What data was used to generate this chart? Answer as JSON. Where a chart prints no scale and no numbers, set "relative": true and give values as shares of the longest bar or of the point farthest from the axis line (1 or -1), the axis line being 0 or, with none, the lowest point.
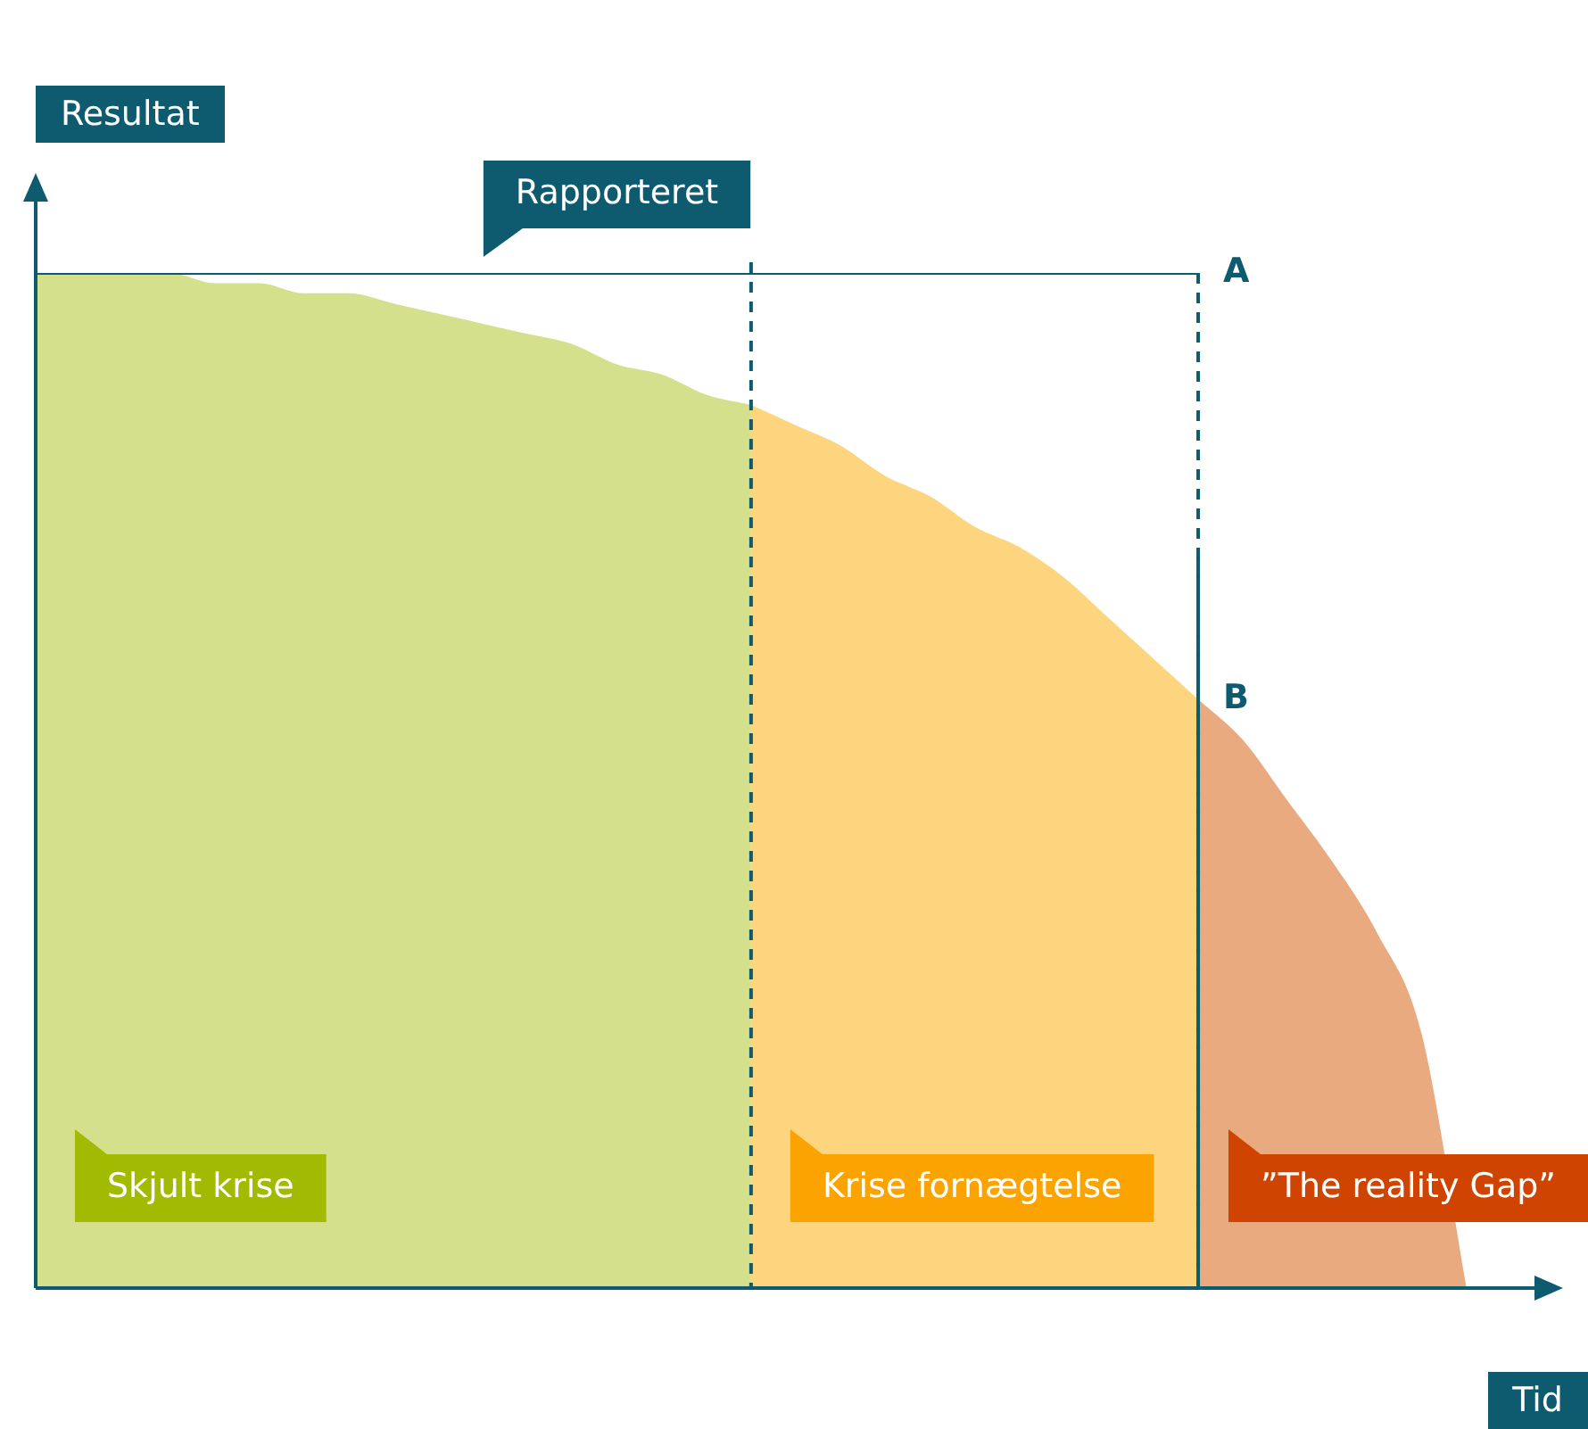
{
  "chart_data": {
    "type": "area",
    "relative": true,
    "xlabel": "Tid",
    "ylabel": "Resultat",
    "categories": [
      null,
      null,
      null,
      null,
      null,
      null,
      null,
      null,
      null,
      null,
      null,
      null,
      null,
      null,
      null,
      null,
      null,
      null,
      null,
      null,
      null,
      null,
      null,
      null,
      null,
      null,
      null,
      null,
      null,
      null,
      null,
      null,
      null,
      null,
      null
    ],
    "series": [
      {
        "name": "Skjult krise",
        "color": "#d4e08c",
        "values": [
          1,
          1,
          1,
          1,
          0.99,
          0.99,
          0.98,
          0.98,
          0.97,
          0.96,
          0.95,
          0.94,
          0.93,
          0.91,
          0.9,
          0.88,
          0.87,
          null,
          null,
          null,
          null,
          null,
          null,
          null,
          null,
          null,
          null,
          null,
          null,
          null,
          null,
          null,
          null,
          null,
          null
        ]
      },
      {
        "name": "Krise fornægtelse",
        "color": "#fdd57f",
        "values": [
          null,
          null,
          null,
          null,
          null,
          null,
          null,
          null,
          null,
          null,
          null,
          null,
          null,
          null,
          null,
          null,
          0.87,
          0.85,
          0.83,
          0.8,
          0.78,
          0.75,
          0.73,
          0.7,
          0.66,
          0.62,
          0.58,
          null,
          null,
          null,
          null,
          null,
          null,
          null,
          null
        ]
      },
      {
        "name": "”The reality Gap”",
        "color": "#e9aa80",
        "values": [
          null,
          null,
          null,
          null,
          null,
          null,
          null,
          null,
          null,
          null,
          null,
          null,
          null,
          null,
          null,
          null,
          null,
          null,
          null,
          null,
          null,
          null,
          null,
          null,
          null,
          null,
          0.58,
          0.54,
          0.48,
          0.42,
          0.35,
          0.25,
          0,
          null,
          null
        ]
      },
      {
        "name": "Rapporteret",
        "type": "line",
        "color": "#0e5a6e",
        "values": [
          1,
          1,
          1,
          1,
          1,
          1,
          1,
          1,
          1,
          1,
          1,
          1,
          1,
          1,
          1,
          1,
          1,
          1,
          1,
          1,
          1,
          1,
          1,
          1,
          1,
          1,
          1,
          null,
          null,
          null,
          null,
          null,
          null,
          null,
          null
        ]
      }
    ],
    "annotations": [
      "A",
      "B"
    ],
    "grid": false,
    "legend": false
  }
}
